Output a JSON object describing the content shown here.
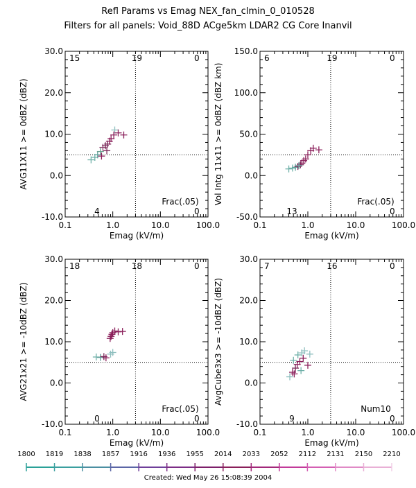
{
  "figure": {
    "title_line1": "Refl Params vs Emag   NEX_fan_clmin_0_010528",
    "title_line2": "Filters for all panels:  Void_88D ACge5km LDAR2 CG Core Inanvil",
    "footer": "Created: Wed May 26 15:08:39 2004"
  },
  "colorbar": {
    "labels": [
      "1800",
      "1819",
      "1838",
      "1857",
      "1916",
      "1936",
      "1955",
      "2014",
      "2033",
      "2052",
      "2112",
      "2131",
      "2150",
      "2210"
    ],
    "colors": [
      "#2aa198",
      "#3a9f9f",
      "#4b8fa2",
      "#5b66a6",
      "#6f3f9a",
      "#7c2d86",
      "#7d1f6a",
      "#8a1f5a",
      "#a2287a",
      "#c23a9a",
      "#d45fb3",
      "#e08ac6",
      "#e9b0d6",
      "#f1cfe6"
    ]
  },
  "chart_data": [
    {
      "type": "scatter",
      "xlabel": "Emag (kV/m)",
      "ylabel": "AVG11X11 >= 0dBZ (dBZ)",
      "xlim": [
        0.1,
        100.0
      ],
      "ylim": [
        -10.0,
        30.0
      ],
      "x_scale": "log",
      "x_ticks": [
        "0.1",
        "1.0",
        "10.0",
        "100.0"
      ],
      "y_ticks": [
        "-10.0",
        "0.0",
        "10.0",
        "20.0",
        "30.0"
      ],
      "y_threshold": 5.0,
      "x_threshold": 3.0,
      "counts": {
        "top_left": "15",
        "top_mid": "19",
        "top_right": "0",
        "bottom_mid_left": "4",
        "bottom_right": "0"
      },
      "annotation": "Frac(.05)",
      "points": [
        {
          "x": 0.35,
          "y": 3.8,
          "c": "#6fb0a8"
        },
        {
          "x": 0.42,
          "y": 4.4,
          "c": "#6fb0a8"
        },
        {
          "x": 0.48,
          "y": 5.0,
          "c": "#5f9f9a"
        },
        {
          "x": 0.55,
          "y": 5.8,
          "c": "#6a9f8f"
        },
        {
          "x": 0.62,
          "y": 6.8,
          "c": "#8a3c6a"
        },
        {
          "x": 0.7,
          "y": 7.2,
          "c": "#7a2a5a"
        },
        {
          "x": 0.78,
          "y": 7.6,
          "c": "#7a2a5a"
        },
        {
          "x": 0.85,
          "y": 8.3,
          "c": "#8a1f5a"
        },
        {
          "x": 0.92,
          "y": 8.9,
          "c": "#8a1f5a"
        },
        {
          "x": 1.05,
          "y": 9.8,
          "c": "#8a1f5a"
        },
        {
          "x": 1.1,
          "y": 11.0,
          "c": "#8fbfbf"
        },
        {
          "x": 1.3,
          "y": 10.3,
          "c": "#8a1f5a"
        },
        {
          "x": 1.7,
          "y": 9.8,
          "c": "#8a1f5a"
        },
        {
          "x": 0.58,
          "y": 4.7,
          "c": "#8a1f5a"
        },
        {
          "x": 0.75,
          "y": 6.0,
          "c": "#7a2a5a"
        }
      ]
    },
    {
      "type": "scatter",
      "xlabel": "Emag (kV/m)",
      "ylabel": "Vol Intg 11x11 >= 0dBZ (dBZ km)",
      "xlim": [
        0.1,
        100.0
      ],
      "ylim": [
        -50.0,
        150.0
      ],
      "x_scale": "log",
      "x_ticks": [
        "0.1",
        "1.0",
        "10.0",
        "100.0"
      ],
      "y_ticks": [
        "-50.0",
        "0.0",
        "50.0",
        "100.0",
        "150.0"
      ],
      "y_threshold": 25.0,
      "x_threshold": 3.0,
      "counts": {
        "top_left": "6",
        "top_mid": "19",
        "top_right": "0",
        "bottom_mid_left": "13",
        "bottom_right": "0"
      },
      "annotation": "Frac(.05)",
      "points": [
        {
          "x": 0.4,
          "y": 8.0,
          "c": "#6fb0a8"
        },
        {
          "x": 0.48,
          "y": 9.0,
          "c": "#6fb0a8"
        },
        {
          "x": 0.55,
          "y": 10.0,
          "c": "#5f9f9a"
        },
        {
          "x": 0.62,
          "y": 11.0,
          "c": "#7a2a5a"
        },
        {
          "x": 0.7,
          "y": 13.0,
          "c": "#7a2a5a"
        },
        {
          "x": 0.75,
          "y": 15.0,
          "c": "#8a1f5a"
        },
        {
          "x": 0.82,
          "y": 18.0,
          "c": "#8a1f5a"
        },
        {
          "x": 0.9,
          "y": 20.0,
          "c": "#8a1f5a"
        },
        {
          "x": 1.0,
          "y": 25.0,
          "c": "#8a1f5a"
        },
        {
          "x": 1.15,
          "y": 30.0,
          "c": "#8a1f5a"
        },
        {
          "x": 1.3,
          "y": 33.0,
          "c": "#8a1f5a"
        },
        {
          "x": 1.7,
          "y": 31.0,
          "c": "#8a1f5a"
        },
        {
          "x": 0.65,
          "y": 12.0,
          "c": "#6fb0a8"
        }
      ]
    },
    {
      "type": "scatter",
      "xlabel": "Emag (kV/m)",
      "ylabel": "AVG21x21 >= -10dBZ (dBZ)",
      "xlim": [
        0.1,
        100.0
      ],
      "ylim": [
        -10.0,
        30.0
      ],
      "x_scale": "log",
      "x_ticks": [
        "0.1",
        "1.0",
        "10.0",
        "100.0"
      ],
      "y_ticks": [
        "-10.0",
        "0.0",
        "10.0",
        "20.0",
        "30.0"
      ],
      "y_threshold": 5.0,
      "x_threshold": 3.0,
      "counts": {
        "top_left": "18",
        "top_mid": "18",
        "top_right": "0",
        "bottom_mid_left": "0",
        "bottom_right": "0"
      },
      "annotation": "Frac(.05)",
      "points": [
        {
          "x": 0.45,
          "y": 6.3,
          "c": "#6fb0a8"
        },
        {
          "x": 0.55,
          "y": 6.2,
          "c": "#5f9f9a"
        },
        {
          "x": 0.65,
          "y": 6.4,
          "c": "#7a2a5a"
        },
        {
          "x": 0.72,
          "y": 6.1,
          "c": "#8a1f5a"
        },
        {
          "x": 0.9,
          "y": 7.0,
          "c": "#8fbfbf"
        },
        {
          "x": 1.0,
          "y": 7.4,
          "c": "#8fbfbf"
        },
        {
          "x": 0.88,
          "y": 10.8,
          "c": "#8a1f5a"
        },
        {
          "x": 0.92,
          "y": 11.3,
          "c": "#8a1f5a"
        },
        {
          "x": 0.96,
          "y": 11.8,
          "c": "#8a1f5a"
        },
        {
          "x": 1.0,
          "y": 12.2,
          "c": "#8a1f5a"
        },
        {
          "x": 1.1,
          "y": 12.6,
          "c": "#8a1f5a"
        },
        {
          "x": 1.3,
          "y": 12.4,
          "c": "#8a1f5a"
        },
        {
          "x": 1.6,
          "y": 12.5,
          "c": "#8a1f5a"
        }
      ]
    },
    {
      "type": "scatter",
      "xlabel": "Emag (kV/m)",
      "ylabel": "AvgCube3x3 >= -10dBZ (dBZ)",
      "xlim": [
        0.1,
        100.0
      ],
      "ylim": [
        -10.0,
        30.0
      ],
      "x_scale": "log",
      "x_ticks": [
        "0.1",
        "1.0",
        "10.0",
        "100.0"
      ],
      "y_ticks": [
        "-10.0",
        "0.0",
        "10.0",
        "20.0",
        "30.0"
      ],
      "y_threshold": 5.0,
      "x_threshold": 3.0,
      "counts": {
        "top_left": "7",
        "top_mid": "16",
        "top_right": "0",
        "bottom_mid_left": "9",
        "bottom_right": "0"
      },
      "annotation": "Num10",
      "points": [
        {
          "x": 0.42,
          "y": 1.5,
          "c": "#8fbfbf"
        },
        {
          "x": 0.48,
          "y": 2.6,
          "c": "#8a1f5a"
        },
        {
          "x": 0.52,
          "y": 2.2,
          "c": "#8a1f5a"
        },
        {
          "x": 0.55,
          "y": 3.6,
          "c": "#7a2a5a"
        },
        {
          "x": 0.6,
          "y": 4.5,
          "c": "#8a1f5a"
        },
        {
          "x": 0.68,
          "y": 5.2,
          "c": "#8a1f5a"
        },
        {
          "x": 0.8,
          "y": 6.0,
          "c": "#8a1f5a"
        },
        {
          "x": 1.0,
          "y": 4.3,
          "c": "#8a1f5a"
        },
        {
          "x": 0.5,
          "y": 5.5,
          "c": "#6fb0a8"
        },
        {
          "x": 0.62,
          "y": 6.8,
          "c": "#6fb0a8"
        },
        {
          "x": 0.75,
          "y": 7.3,
          "c": "#8fbfbf"
        },
        {
          "x": 0.85,
          "y": 7.8,
          "c": "#8fbfbf"
        },
        {
          "x": 1.1,
          "y": 7.0,
          "c": "#8fbfbf"
        },
        {
          "x": 0.72,
          "y": 3.0,
          "c": "#6fb0a8"
        }
      ]
    }
  ]
}
